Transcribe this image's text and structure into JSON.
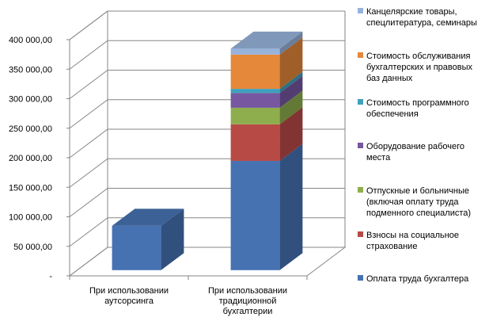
{
  "chart_data": {
    "type": "bar",
    "stacked": true,
    "three_d": true,
    "title": "",
    "xlabel": "",
    "ylabel": "",
    "ylim": [
      0,
      400000
    ],
    "grid": true,
    "legend_position": "right",
    "y_ticks": [
      "-",
      "50 000,00",
      "100 000,00",
      "150 000,00",
      "200 000,00",
      "250 000,00",
      "300 000,00",
      "350 000,00",
      "400 000,00"
    ],
    "categories": [
      [
        "При использовании",
        "аутсорсинга"
      ],
      [
        "При использовании",
        "традиционной",
        "бухгалтерии"
      ]
    ],
    "series": [
      {
        "name": [
          "Оплата труда бухгалтера"
        ],
        "color": "#4672B2",
        "values": [
          75000,
          185000
        ]
      },
      {
        "name": [
          "Взносы на социальное",
          "страхование"
        ],
        "color": "#B84A46",
        "values": [
          0,
          62000
        ]
      },
      {
        "name": [
          "Отпускные и больничные",
          "(включая  оплату труда",
          "подменного   специалиста)"
        ],
        "color": "#8EAE4D",
        "values": [
          0,
          28000
        ]
      },
      {
        "name": [
          "Оборудование рабочего",
          "места"
        ],
        "color": "#7657A0",
        "values": [
          0,
          25000
        ]
      },
      {
        "name": [
          "Стоимость программного",
          "обеспечения"
        ],
        "color": "#3FA0BE",
        "values": [
          0,
          7000
        ]
      },
      {
        "name": [
          "Стоимость обслуживания",
          "бухгалтерских и правовых",
          "баз данных"
        ],
        "color": "#E5883A",
        "values": [
          0,
          58000
        ]
      },
      {
        "name": [
          "Канцелярские товары,",
          "спецлитература, семинары"
        ],
        "color": "#97B3DB",
        "values": [
          0,
          10000
        ]
      }
    ]
  }
}
